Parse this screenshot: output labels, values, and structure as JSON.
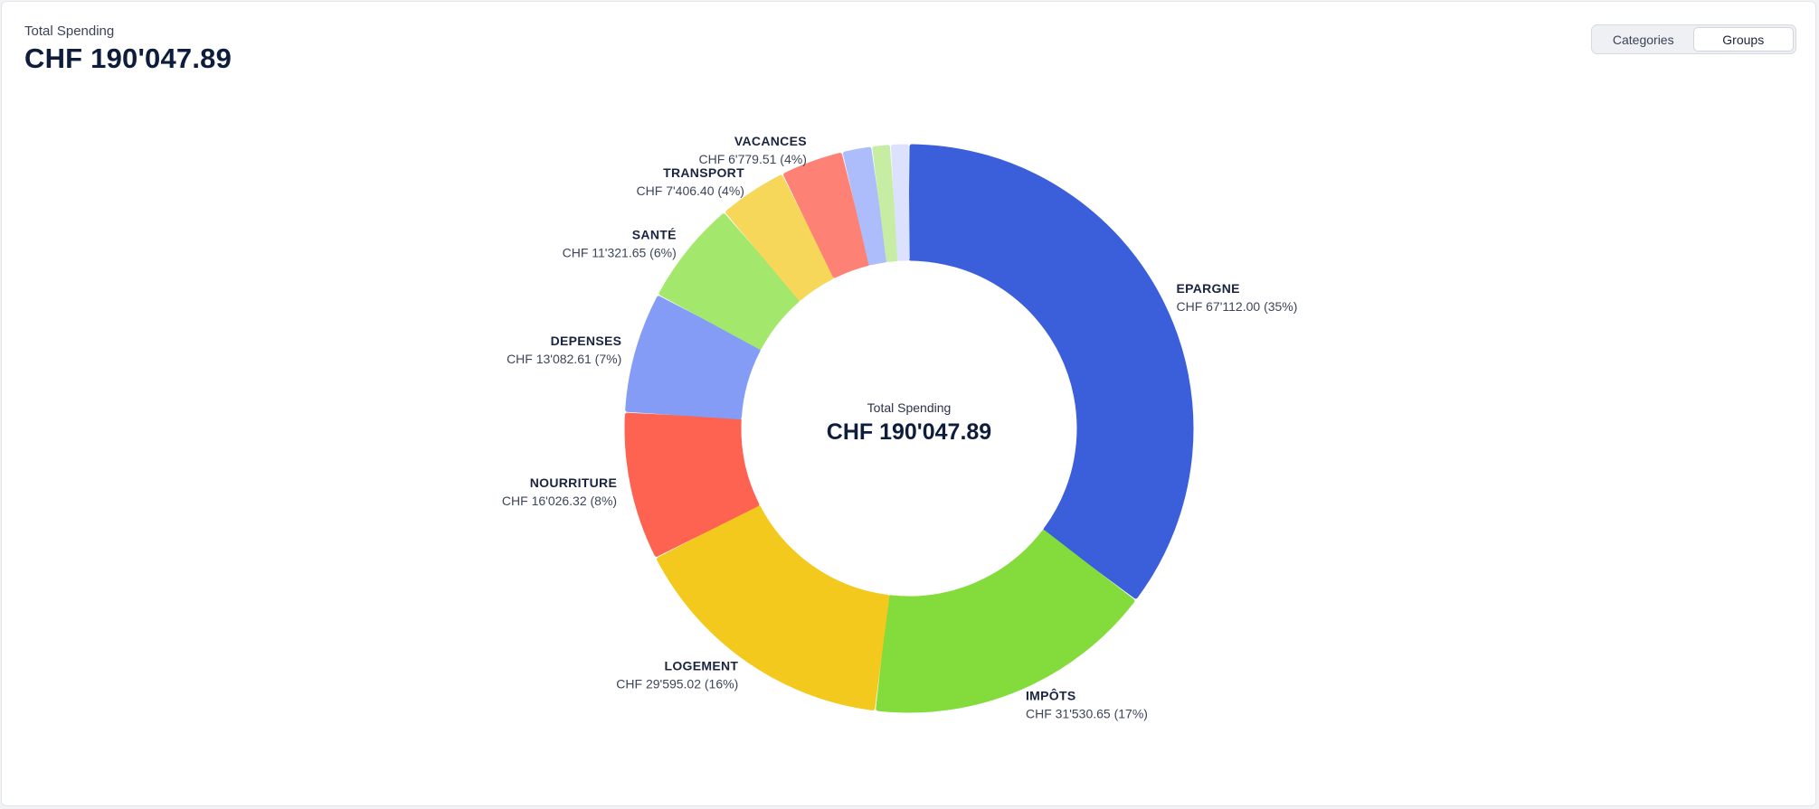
{
  "header": {
    "subtitle": "Total Spending",
    "total": "CHF 190'047.89"
  },
  "toggle": {
    "options": [
      "Categories",
      "Groups"
    ],
    "selected": "Groups"
  },
  "chart_data": {
    "type": "donut",
    "center_label": "Total Spending",
    "center_value": "CHF 190'047.89",
    "currency": "CHF",
    "total": 190047.89,
    "slices": [
      {
        "label": "EPARGNE",
        "value": 67112.0,
        "value_text": "CHF 67'112.00 (35%)",
        "color": "#3b5fdb"
      },
      {
        "label": "IMPÔTS",
        "value": 31530.65,
        "value_text": "CHF 31'530.65 (17%)",
        "color": "#84dc3c"
      },
      {
        "label": "LOGEMENT",
        "value": 29595.02,
        "value_text": "CHF 29'595.02 (16%)",
        "color": "#f4c91e"
      },
      {
        "label": "NOURRITURE",
        "value": 16026.32,
        "value_text": "CHF 16'026.32 (8%)",
        "color": "#fe6251"
      },
      {
        "label": "DEPENSES",
        "value": 13082.61,
        "value_text": "CHF 13'082.61 (7%)",
        "color": "#859cf7"
      },
      {
        "label": "SANTÉ",
        "value": 11321.65,
        "value_text": "CHF 11'321.65 (6%)",
        "color": "#a3e86d"
      },
      {
        "label": "TRANSPORT",
        "value": 7406.4,
        "value_text": "CHF 7'406.40 (4%)",
        "color": "#f6d75a"
      },
      {
        "label": "VACANCES",
        "value": 6779.51,
        "value_text": "CHF 6'779.51 (4%)",
        "color": "#fd8275"
      },
      {
        "label": "",
        "value": 3200,
        "value_text": "",
        "color": "#adbdfb"
      },
      {
        "label": "",
        "value": 2000,
        "value_text": "",
        "color": "#c6eda3"
      },
      {
        "label": "",
        "value": 1993.73,
        "value_text": "",
        "color": "#dce2fd"
      }
    ]
  }
}
